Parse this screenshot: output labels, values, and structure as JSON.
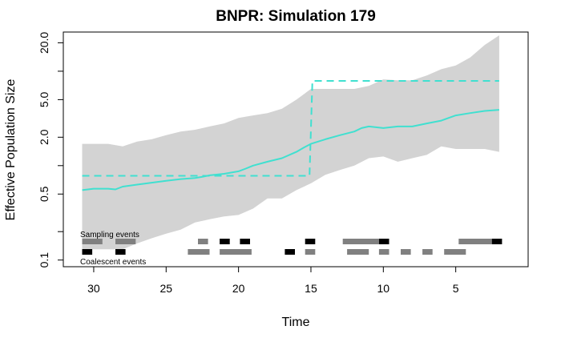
{
  "chart_data": {
    "type": "line",
    "title": "BNPR: Simulation 179",
    "xlabel": "Time",
    "ylabel": "Effective Population Size",
    "x_reversed": true,
    "xlim": [
      32.1,
      0
    ],
    "x_ticks": [
      30,
      25,
      20,
      15,
      10,
      5
    ],
    "x_tick_labels": [
      "30",
      "25",
      "20",
      "15",
      "10",
      "5"
    ],
    "y_scale": "log",
    "ylim": [
      0.085,
      26
    ],
    "y_ticks": [
      0.1,
      0.2,
      0.5,
      1,
      2,
      5,
      10,
      20
    ],
    "y_tick_labels": [
      "0.1",
      "",
      "0.5",
      "",
      "2.0",
      "5.0",
      "",
      "20.0"
    ],
    "colors": {
      "band": "#d3d3d3",
      "line": "#40e0d0",
      "sampling": "#808080",
      "coalescent": "#000000"
    },
    "series": [
      {
        "role": "estimate",
        "style": "solid",
        "x": [
          30.8,
          30,
          29,
          28.5,
          28,
          27,
          26,
          25,
          24,
          23,
          22.5,
          22,
          21,
          20,
          19.5,
          19,
          18,
          17,
          16,
          15.5,
          15,
          14,
          13,
          12,
          11.5,
          11,
          10,
          9,
          8,
          7,
          6,
          5.5,
          5,
          4,
          3,
          2
        ],
        "y": [
          0.55,
          0.57,
          0.57,
          0.56,
          0.6,
          0.63,
          0.66,
          0.69,
          0.72,
          0.74,
          0.76,
          0.79,
          0.82,
          0.87,
          0.93,
          1.0,
          1.1,
          1.2,
          1.4,
          1.55,
          1.7,
          1.9,
          2.1,
          2.3,
          2.5,
          2.6,
          2.5,
          2.6,
          2.6,
          2.8,
          3.0,
          3.2,
          3.4,
          3.6,
          3.8,
          3.9
        ]
      },
      {
        "role": "truth",
        "style": "dashed",
        "x": [
          30.8,
          15.1,
          15.1,
          14.9,
          2
        ],
        "y": [
          0.78,
          0.78,
          0.78,
          7.9,
          7.9
        ]
      }
    ],
    "band": {
      "x": [
        30.8,
        30,
        29,
        28,
        27,
        26,
        25,
        24,
        23,
        22,
        21,
        20,
        19,
        18,
        17,
        16,
        15,
        14,
        13,
        12,
        11,
        10,
        9,
        8,
        7,
        6,
        5,
        4,
        3,
        2
      ],
      "lower": [
        0.13,
        0.13,
        0.13,
        0.13,
        0.15,
        0.17,
        0.19,
        0.21,
        0.25,
        0.27,
        0.29,
        0.3,
        0.35,
        0.45,
        0.45,
        0.55,
        0.65,
        0.8,
        0.9,
        1.0,
        1.2,
        1.25,
        1.1,
        1.2,
        1.3,
        1.6,
        1.5,
        1.5,
        1.5,
        1.4
      ],
      "upper": [
        1.7,
        1.7,
        1.7,
        1.6,
        1.8,
        1.9,
        2.1,
        2.3,
        2.4,
        2.6,
        2.8,
        3.2,
        3.4,
        3.6,
        4.0,
        5.0,
        6.5,
        6.5,
        6.5,
        6.5,
        7.0,
        8.2,
        8.0,
        8.0,
        9.0,
        10.5,
        11.5,
        14.0,
        19.0,
        24.0
      ]
    },
    "annotations": {
      "sampling_label": "Sampling events",
      "coalescent_label": "Coalescent events"
    },
    "sampling_events": [
      {
        "t": [
          30.8,
          29.4
        ],
        "shade": "gray"
      },
      {
        "t": [
          28.5,
          27.1
        ],
        "shade": "gray"
      },
      {
        "t": [
          22.8,
          22.1
        ],
        "shade": "gray"
      },
      {
        "t": [
          21.3,
          20.6
        ],
        "shade": "black"
      },
      {
        "t": [
          19.9,
          19.2
        ],
        "shade": "black"
      },
      {
        "t": [
          15.4,
          14.7
        ],
        "shade": "black"
      },
      {
        "t": [
          12.8,
          10.3
        ],
        "shade": "gray"
      },
      {
        "t": [
          10.3,
          9.6
        ],
        "shade": "black"
      },
      {
        "t": [
          4.8,
          2.5
        ],
        "shade": "gray"
      },
      {
        "t": [
          2.5,
          1.8
        ],
        "shade": "black"
      }
    ],
    "coalescent_events": [
      {
        "t": [
          30.8,
          30.1
        ],
        "shade": "black"
      },
      {
        "t": [
          28.5,
          27.8
        ],
        "shade": "black"
      },
      {
        "t": [
          23.5,
          22.0
        ],
        "shade": "gray"
      },
      {
        "t": [
          21.3,
          19.1
        ],
        "shade": "gray"
      },
      {
        "t": [
          16.8,
          16.1
        ],
        "shade": "black"
      },
      {
        "t": [
          15.4,
          14.7
        ],
        "shade": "gray"
      },
      {
        "t": [
          12.5,
          11.0
        ],
        "shade": "gray"
      },
      {
        "t": [
          10.3,
          9.6
        ],
        "shade": "gray"
      },
      {
        "t": [
          8.8,
          8.1
        ],
        "shade": "gray"
      },
      {
        "t": [
          7.3,
          6.6
        ],
        "shade": "gray"
      },
      {
        "t": [
          5.8,
          4.3
        ],
        "shade": "gray"
      }
    ]
  }
}
